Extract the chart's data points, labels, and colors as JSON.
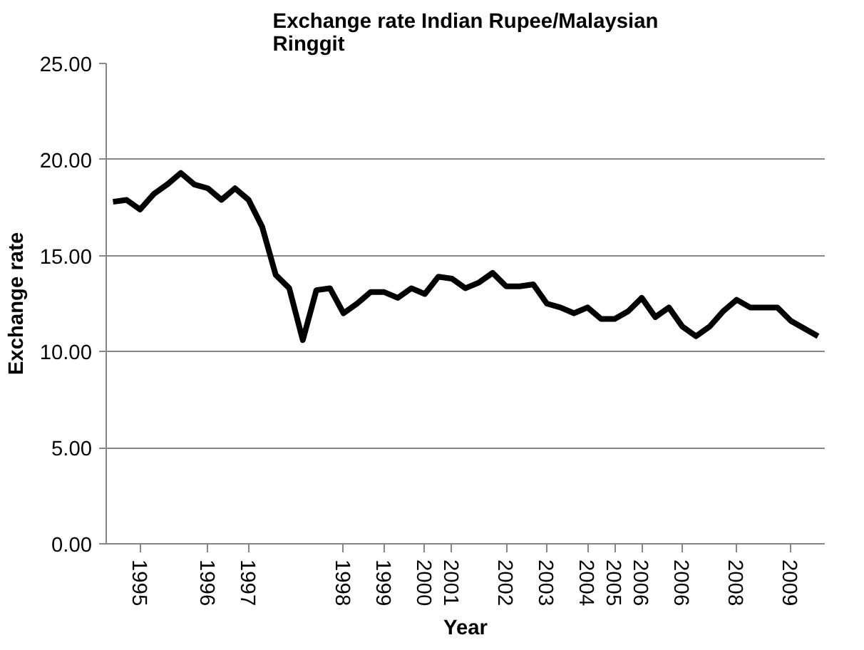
{
  "chart_data": {
    "type": "line",
    "title": "Exchange rate Indian Rupee/Malaysian Ringgit",
    "xlabel": "Year",
    "ylabel": "Exchange rate",
    "categories": [
      null,
      null,
      "1995",
      null,
      null,
      null,
      null,
      "1996",
      null,
      null,
      "1997",
      null,
      null,
      null,
      null,
      null,
      null,
      "1998",
      null,
      null,
      "1999",
      null,
      null,
      "2000",
      null,
      "2001",
      null,
      null,
      null,
      "2002",
      null,
      null,
      "2003",
      null,
      null,
      "2004",
      null,
      "2005",
      null,
      "2006",
      null,
      null,
      "2006",
      null,
      null,
      null,
      "2008",
      null,
      null,
      null,
      "2009",
      null,
      null
    ],
    "series": [
      {
        "color": "#000000",
        "values": [
          17.8,
          17.9,
          17.4,
          18.2,
          18.7,
          19.3,
          18.7,
          18.5,
          17.9,
          18.5,
          17.9,
          16.5,
          14.0,
          13.3,
          10.6,
          13.2,
          13.3,
          12.0,
          12.5,
          13.1,
          13.1,
          12.8,
          13.3,
          13.0,
          13.9,
          13.8,
          13.3,
          13.6,
          14.1,
          13.4,
          13.4,
          13.5,
          12.5,
          12.3,
          12.0,
          12.3,
          11.7,
          11.7,
          12.1,
          12.8,
          11.8,
          12.3,
          11.3,
          10.8,
          11.3,
          12.1,
          12.7,
          12.3,
          12.3,
          12.3,
          11.6,
          11.2,
          10.8
        ]
      }
    ],
    "ylim": [
      0,
      25
    ],
    "yticks": [
      {
        "value": 0,
        "label": "0.00"
      },
      {
        "value": 5,
        "label": "5.00"
      },
      {
        "value": 10,
        "label": "10.00"
      },
      {
        "value": 15,
        "label": "15.00"
      },
      {
        "value": 20,
        "label": "20.00"
      },
      {
        "value": 25,
        "label": "25.00"
      }
    ],
    "grid": "y",
    "marker": "none",
    "line_style": "solid"
  }
}
